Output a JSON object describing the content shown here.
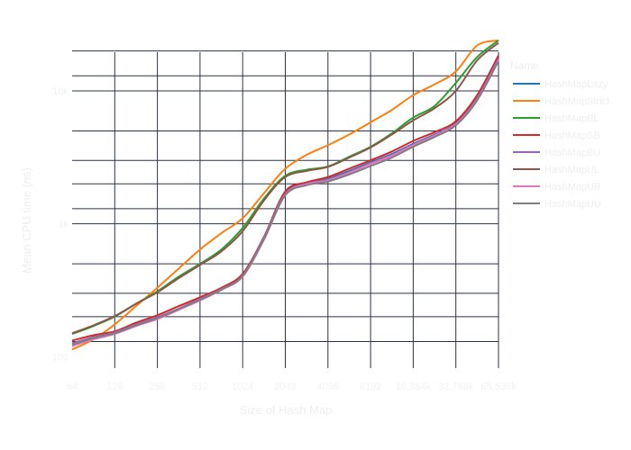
{
  "chart_data": {
    "type": "line",
    "title": "",
    "xlabel": "Size of Hash Map",
    "ylabel": "Mean CPU time (ns)",
    "y_scale": "log",
    "ylim": [
      82,
      28000
    ],
    "x_categories": [
      "64",
      "128",
      "256",
      "512",
      "1024",
      "2048",
      "4096",
      "8192",
      "16,384k",
      "32,768k",
      "65,536k"
    ],
    "y_tick_labels": [
      {
        "value": 100,
        "label": "100"
      },
      {
        "value": 1000,
        "label": "1k"
      },
      {
        "value": 10000,
        "label": "10k"
      }
    ],
    "y_gridlines": [
      130,
      200,
      300,
      500,
      1000,
      1300,
      2000,
      3000,
      5000,
      10000,
      13000,
      20000
    ],
    "grid": true,
    "legend": {
      "title": "Name",
      "position": "right"
    },
    "series": [
      {
        "name": "HashMapLazy",
        "color": "#1f77b4",
        "x": [
          0,
          0.5,
          1,
          1.5,
          2,
          2.5,
          3,
          3.5,
          4,
          4.5,
          5,
          5.5,
          6,
          6.5,
          7,
          7.5,
          8,
          8.5,
          9,
          9.5,
          10
        ],
        "values": [
          125,
          140,
          150,
          172,
          195,
          228,
          270,
          325,
          410,
          780,
          1700,
          2020,
          2180,
          2500,
          2900,
          3350,
          4000,
          4700,
          5700,
          9000,
          18000
        ]
      },
      {
        "name": "HashMapStrict",
        "color": "#ff7f0e",
        "x": [
          0,
          0.5,
          1,
          1.5,
          2,
          2.5,
          3,
          3.5,
          4,
          4.5,
          5,
          5.5,
          6,
          6.5,
          7,
          7.5,
          8,
          8.5,
          9,
          9.5,
          10
        ],
        "values": [
          113,
          135,
          175,
          240,
          330,
          460,
          640,
          850,
          1100,
          1700,
          2600,
          3300,
          3900,
          4700,
          5800,
          7200,
          9300,
          11200,
          14000,
          22000,
          24000
        ]
      },
      {
        "name": "HashMapBL",
        "color": "#2ca02c",
        "x": [
          0,
          0.5,
          1,
          1.5,
          2,
          2.5,
          3,
          3.5,
          4,
          4.5,
          5,
          5.5,
          6,
          6.5,
          7,
          7.5,
          8,
          8.5,
          9,
          9.5,
          10
        ],
        "values": [
          148,
          170,
          200,
          250,
          310,
          400,
          500,
          640,
          930,
          1550,
          2300,
          2550,
          2700,
          3200,
          3800,
          4800,
          6300,
          7700,
          11500,
          18000,
          24000
        ]
      },
      {
        "name": "HashMapSB",
        "color": "#d62728",
        "x": [
          0,
          0.5,
          1,
          1.5,
          2,
          2.5,
          3,
          3.5,
          4,
          4.5,
          5,
          5.5,
          6,
          6.5,
          7,
          7.5,
          8,
          8.5,
          9,
          9.5,
          10
        ],
        "values": [
          132,
          145,
          155,
          180,
          205,
          240,
          280,
          330,
          420,
          800,
          1750,
          2050,
          2250,
          2600,
          3000,
          3500,
          4200,
          4900,
          5900,
          9300,
          18500
        ]
      },
      {
        "name": "HashMapBU",
        "color": "#9467bd",
        "x": [
          0,
          0.5,
          1,
          1.5,
          2,
          2.5,
          3,
          3.5,
          4,
          4.5,
          5,
          5.5,
          6,
          6.5,
          7,
          7.5,
          8,
          8.5,
          9,
          9.5,
          10
        ],
        "values": [
          126,
          140,
          152,
          175,
          198,
          230,
          272,
          322,
          408,
          790,
          1680,
          2000,
          2150,
          2450,
          2850,
          3300,
          3950,
          4650,
          5650,
          8800,
          17500
        ]
      },
      {
        "name": "HashMapUL",
        "color": "#8c564b",
        "x": [
          0,
          0.5,
          1,
          1.5,
          2,
          2.5,
          3,
          3.5,
          4,
          4.5,
          5,
          5.5,
          6,
          6.5,
          7,
          7.5,
          8,
          8.5,
          9,
          9.5,
          10
        ],
        "values": [
          150,
          172,
          202,
          250,
          305,
          390,
          490,
          620,
          880,
          1500,
          2250,
          2500,
          2680,
          3150,
          3750,
          4700,
          6000,
          7400,
          10000,
          17000,
          23000
        ]
      },
      {
        "name": "HashMapUB",
        "color": "#e377c2",
        "x": [
          0,
          0.5,
          1,
          1.5,
          2,
          2.5,
          3,
          3.5,
          4,
          4.5,
          5,
          5.5,
          6,
          6.5,
          7,
          7.5,
          8,
          8.5,
          9,
          9.5,
          10
        ],
        "values": [
          120,
          135,
          148,
          170,
          192,
          225,
          265,
          318,
          400,
          760,
          1650,
          1980,
          2120,
          2420,
          2820,
          3250,
          3900,
          4600,
          5600,
          8600,
          17000
        ]
      },
      {
        "name": "HashMapUU",
        "color": "#7f7f7f",
        "x": [
          0,
          0.5,
          1,
          1.5,
          2,
          2.5,
          3,
          3.5,
          4,
          4.5,
          5,
          5.5,
          6,
          6.5,
          7,
          7.5,
          8,
          8.5,
          9,
          9.5,
          10
        ],
        "values": [
          123,
          138,
          150,
          172,
          195,
          228,
          268,
          320,
          405,
          770,
          1640,
          1950,
          2080,
          2350,
          2720,
          3150,
          3800,
          4500,
          5500,
          8500,
          16800
        ]
      }
    ]
  }
}
